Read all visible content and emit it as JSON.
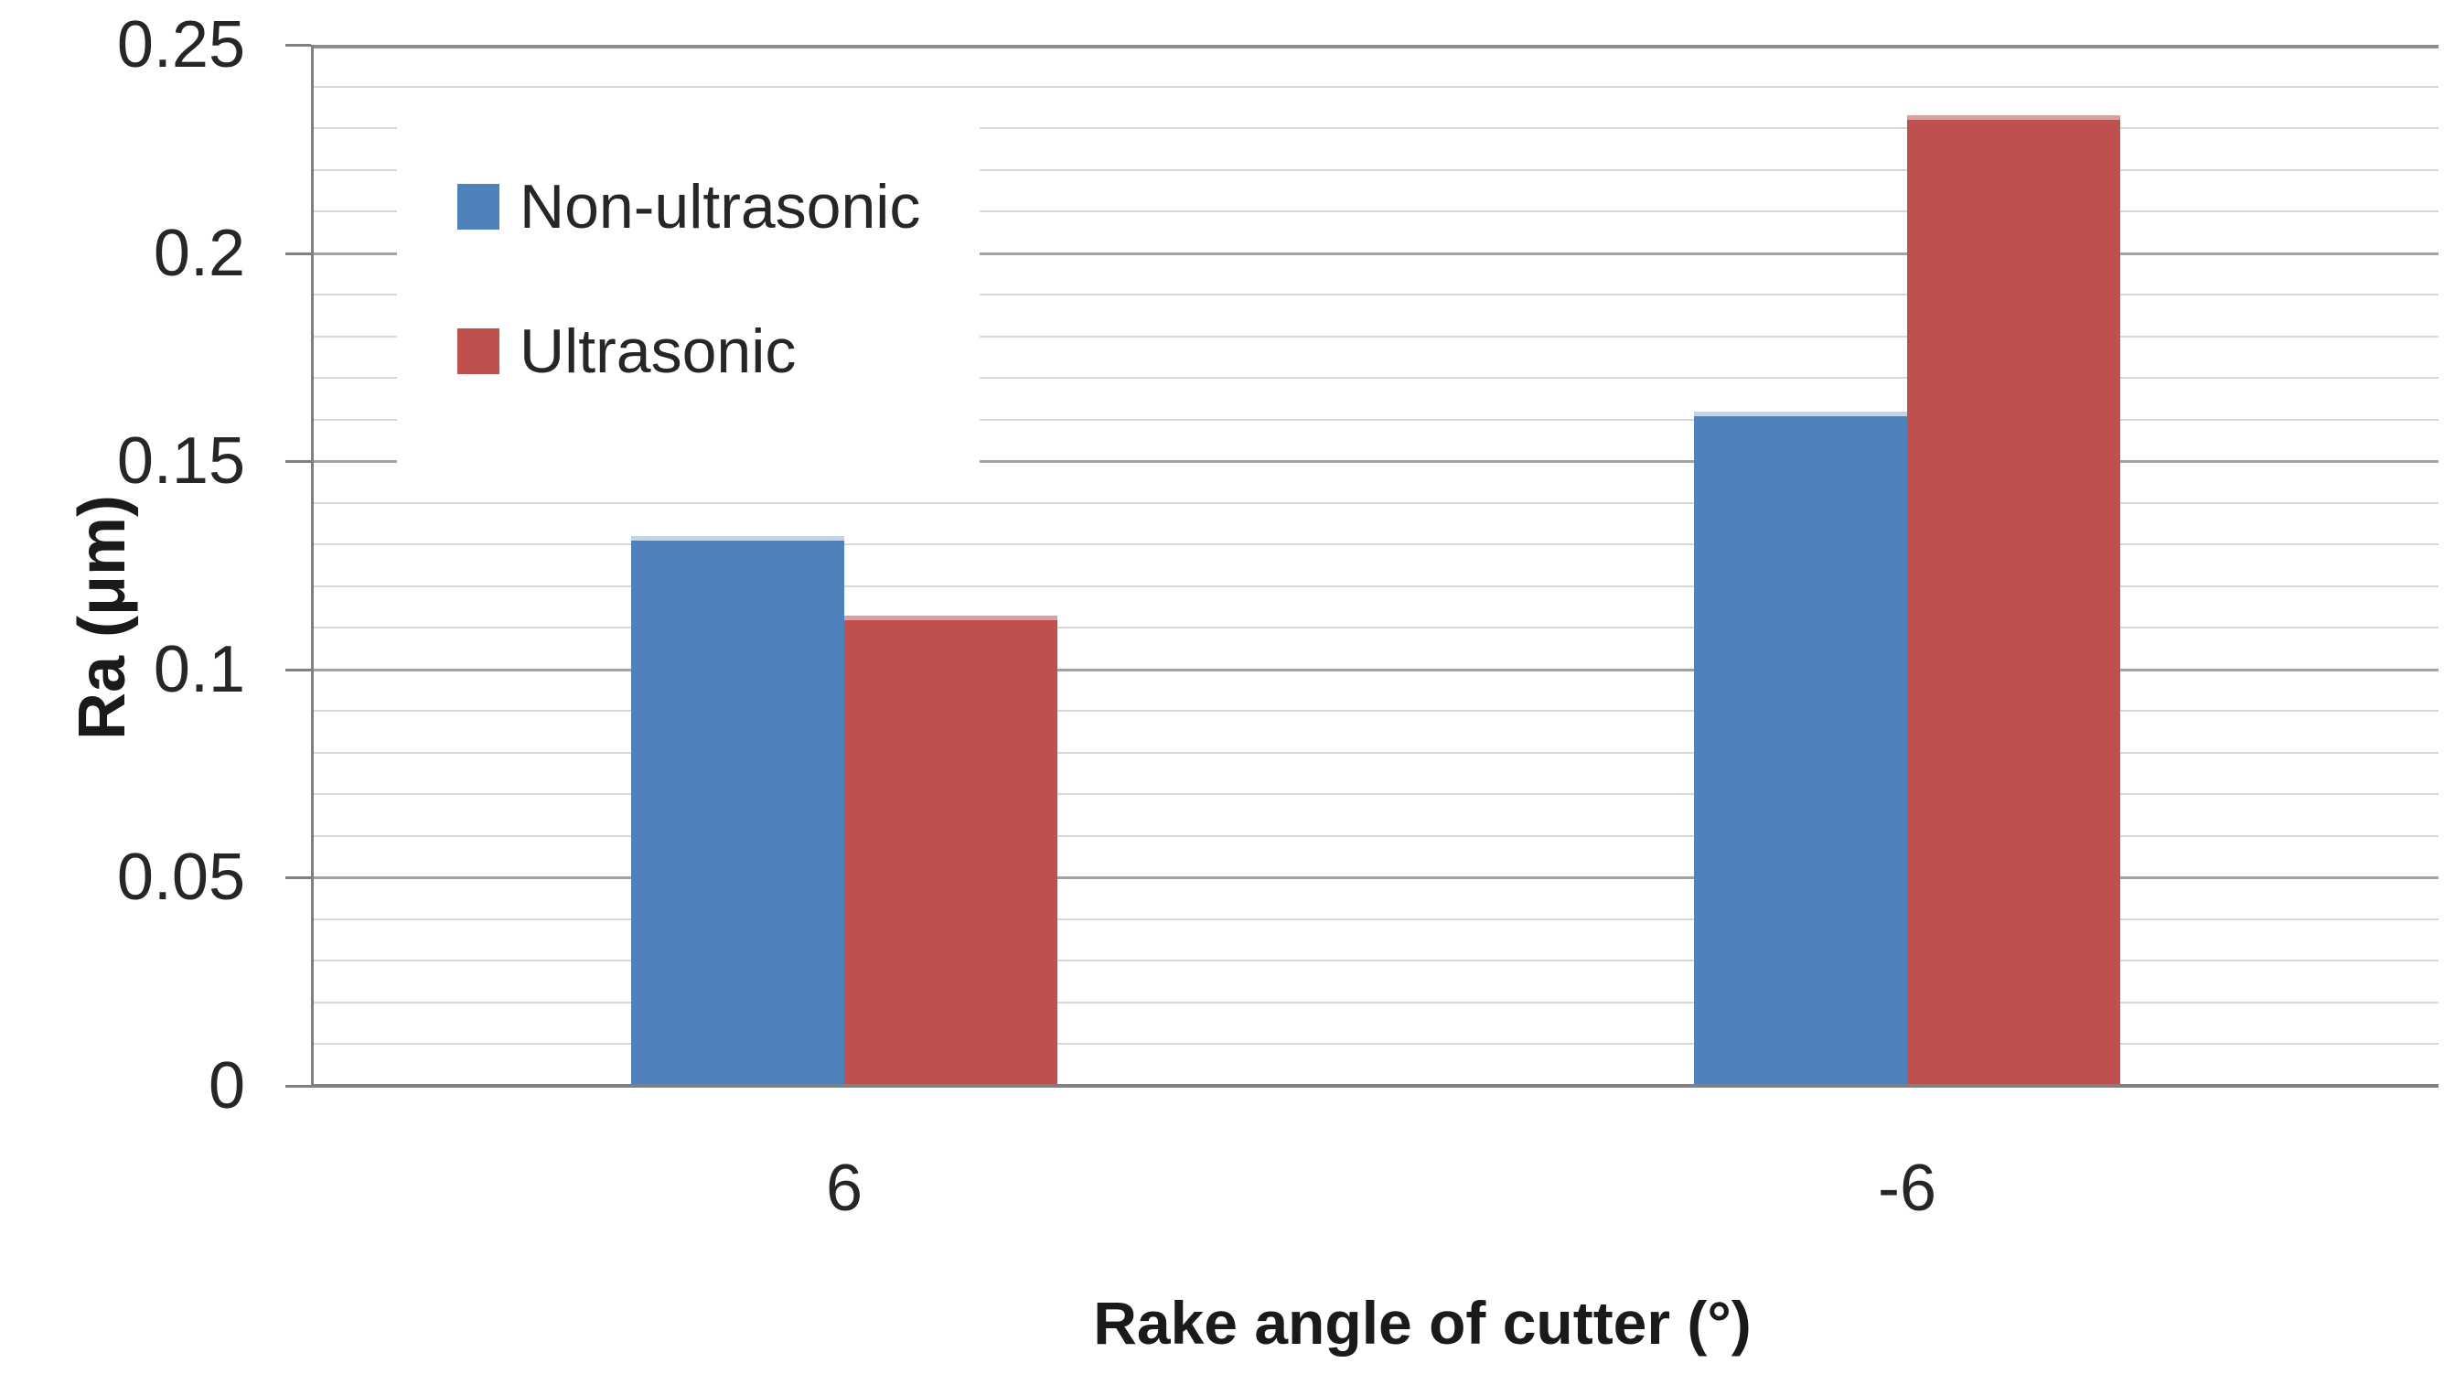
{
  "chart_data": {
    "type": "bar",
    "title": "",
    "xlabel": "Rake angle of cutter (°)",
    "ylabel": "Ra (μm)",
    "categories": [
      "6",
      "-6"
    ],
    "series": [
      {
        "name": "Non-ultrasonic",
        "color": "#4F81BD",
        "edge_color": "#c3d3e8",
        "values": [
          0.132,
          0.162
        ]
      },
      {
        "name": "Ultrasonic",
        "color": "#C0504D",
        "edge_color": "#d9a09d",
        "values": [
          0.113,
          0.233
        ]
      }
    ],
    "ylim": [
      0,
      0.25
    ],
    "y_major_step": 0.05,
    "y_minor_step": 0.01,
    "y_ticks": [
      {
        "label": "0.25",
        "value": 0.25
      },
      {
        "label": "0.2",
        "value": 0.2
      },
      {
        "label": "0.15",
        "value": 0.15
      },
      {
        "label": "0.1",
        "value": 0.1
      },
      {
        "label": "0.05",
        "value": 0.05
      },
      {
        "label": "0",
        "value": 0
      }
    ],
    "grid": "horizontal, minor every 0.01 light gray, major every 0.05 darker gray",
    "legend_position": "inside top-left, white box, vertical",
    "plot_bg": "#ffffff",
    "axis_color": "#808080"
  }
}
